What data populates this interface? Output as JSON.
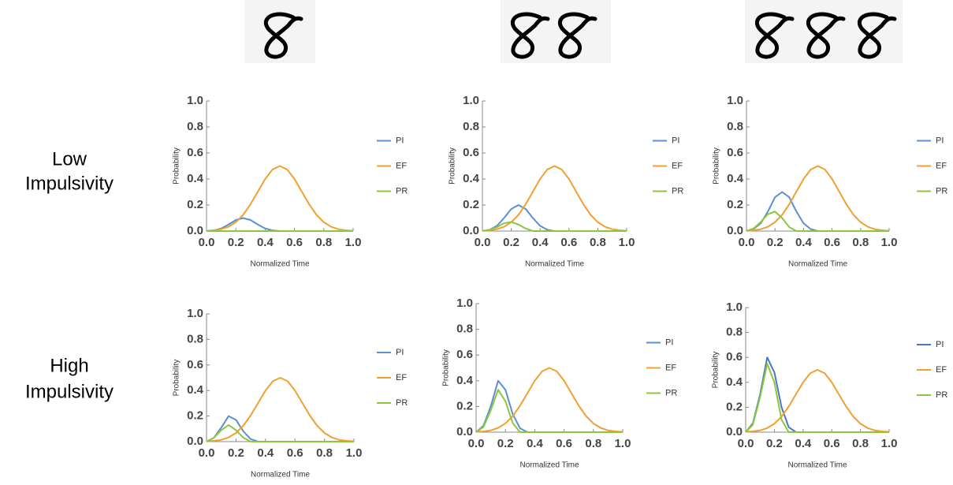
{
  "row_labels": [
    [
      "Low",
      "Impulsivity"
    ],
    [
      "High",
      "Impulsivity"
    ]
  ],
  "chart_data": [
    {
      "type": "line",
      "xlabel": "Normalized Time",
      "ylabel": "Probability",
      "xlim": [
        0,
        1
      ],
      "ylim": [
        0,
        1
      ],
      "xticks": [
        {
          "value": 0,
          "label": "0.0"
        },
        0.2,
        0.4,
        0.6,
        0.8,
        {
          "value": 1,
          "label": "1.0"
        }
      ],
      "yticks": [
        {
          "value": 0,
          "label": "0.0"
        },
        0.2,
        0.4,
        0.6,
        0.8,
        {
          "value": 1,
          "label": "1.0"
        }
      ],
      "x": [
        0,
        0.05,
        0.1,
        0.15,
        0.2,
        0.25,
        0.3,
        0.35,
        0.4,
        0.45,
        0.5,
        0.55,
        0.6,
        0.65,
        0.7,
        0.75,
        0.8,
        0.85,
        0.9,
        0.95,
        1
      ],
      "series": [
        {
          "name": "PI",
          "color": "#5b8fd1",
          "values": [
            0,
            0.005,
            0.02,
            0.05,
            0.085,
            0.1,
            0.085,
            0.05,
            0.02,
            0.005,
            0,
            0,
            0,
            0,
            0,
            0,
            0,
            0,
            0,
            0,
            0
          ]
        },
        {
          "name": "EF",
          "color": "#f0a030",
          "values": [
            0.002,
            0.006,
            0.014,
            0.033,
            0.068,
            0.125,
            0.206,
            0.303,
            0.4,
            0.473,
            0.5,
            0.473,
            0.4,
            0.303,
            0.206,
            0.125,
            0.068,
            0.033,
            0.014,
            0.006,
            0.002
          ]
        },
        {
          "name": "PR",
          "color": "#8cc63f",
          "values": [
            0,
            0,
            0,
            0,
            0,
            0,
            0,
            0,
            0,
            0,
            0,
            0,
            0,
            0,
            0,
            0,
            0,
            0,
            0,
            0,
            0
          ]
        }
      ]
    },
    {
      "type": "line",
      "xlabel": "Normalized Time",
      "ylabel": "Probability",
      "xlim": [
        0,
        1
      ],
      "ylim": [
        0,
        1
      ],
      "xticks": [
        {
          "value": 0,
          "label": "0.0"
        },
        0.2,
        0.4,
        0.6,
        0.8,
        {
          "value": 1,
          "label": "1.0"
        }
      ],
      "yticks": [
        {
          "value": 0,
          "label": "0.0"
        },
        0.2,
        0.4,
        0.6,
        0.8,
        {
          "value": 1,
          "label": "1.0"
        }
      ],
      "x": [
        0,
        0.05,
        0.1,
        0.15,
        0.2,
        0.25,
        0.3,
        0.35,
        0.4,
        0.45,
        0.5,
        0.55,
        0.6,
        0.65,
        0.7,
        0.75,
        0.8,
        0.85,
        0.9,
        0.95,
        1
      ],
      "series": [
        {
          "name": "PI",
          "color": "#5b8fd1",
          "values": [
            0,
            0.01,
            0.04,
            0.1,
            0.17,
            0.2,
            0.17,
            0.1,
            0.04,
            0.01,
            0,
            0,
            0,
            0,
            0,
            0,
            0,
            0,
            0,
            0,
            0
          ]
        },
        {
          "name": "EF",
          "color": "#f0a030",
          "values": [
            0.002,
            0.006,
            0.014,
            0.033,
            0.068,
            0.125,
            0.206,
            0.303,
            0.4,
            0.473,
            0.5,
            0.473,
            0.4,
            0.303,
            0.206,
            0.125,
            0.068,
            0.033,
            0.014,
            0.006,
            0.002
          ]
        },
        {
          "name": "PR",
          "color": "#8cc63f",
          "values": [
            0,
            0.01,
            0.03,
            0.06,
            0.07,
            0.05,
            0.02,
            0,
            0,
            0,
            0,
            0,
            0,
            0,
            0,
            0,
            0,
            0,
            0,
            0,
            0
          ]
        }
      ]
    },
    {
      "type": "line",
      "xlabel": "Normalized Time",
      "ylabel": "Probability",
      "xlim": [
        0,
        1
      ],
      "ylim": [
        0,
        1
      ],
      "xticks": [
        {
          "value": 0,
          "label": "0.0"
        },
        0.2,
        0.4,
        0.6,
        0.8,
        {
          "value": 1,
          "label": "1.0"
        }
      ],
      "yticks": [
        {
          "value": 0,
          "label": "0.0"
        },
        0.2,
        0.4,
        0.6,
        0.8,
        {
          "value": 1,
          "label": "1.0"
        }
      ],
      "x": [
        0,
        0.05,
        0.1,
        0.15,
        0.2,
        0.25,
        0.3,
        0.35,
        0.4,
        0.45,
        0.5,
        0.55,
        0.6,
        0.65,
        0.7,
        0.75,
        0.8,
        0.85,
        0.9,
        0.95,
        1
      ],
      "series": [
        {
          "name": "PI",
          "color": "#5b8fd1",
          "values": [
            0,
            0.015,
            0.06,
            0.15,
            0.26,
            0.3,
            0.26,
            0.15,
            0.06,
            0.015,
            0,
            0,
            0,
            0,
            0,
            0,
            0,
            0,
            0,
            0,
            0
          ]
        },
        {
          "name": "EF",
          "color": "#f0a030",
          "values": [
            0.002,
            0.006,
            0.014,
            0.033,
            0.068,
            0.125,
            0.206,
            0.303,
            0.4,
            0.473,
            0.5,
            0.473,
            0.4,
            0.303,
            0.206,
            0.125,
            0.068,
            0.033,
            0.014,
            0.006,
            0.002
          ]
        },
        {
          "name": "PR",
          "color": "#8cc63f",
          "values": [
            0,
            0.02,
            0.07,
            0.13,
            0.15,
            0.1,
            0.03,
            0,
            0,
            0,
            0,
            0,
            0,
            0,
            0,
            0,
            0,
            0,
            0,
            0,
            0
          ]
        }
      ]
    },
    {
      "type": "line",
      "xlabel": "Normalized Time",
      "ylabel": "Probability",
      "xlim": [
        0,
        1
      ],
      "ylim": [
        0,
        1
      ],
      "xticks": [
        {
          "value": 0,
          "label": "0.0"
        },
        0.2,
        0.4,
        0.6,
        0.8,
        {
          "value": 1,
          "label": "1.0"
        }
      ],
      "yticks": [
        {
          "value": 0,
          "label": "0.0"
        },
        0.2,
        0.4,
        0.6,
        0.8,
        {
          "value": 1,
          "label": "1.0"
        }
      ],
      "x": [
        0,
        0.05,
        0.1,
        0.15,
        0.2,
        0.25,
        0.3,
        0.35,
        0.4,
        0.45,
        0.5,
        0.55,
        0.6,
        0.65,
        0.7,
        0.75,
        0.8,
        0.85,
        0.9,
        0.95,
        1
      ],
      "series": [
        {
          "name": "PI",
          "color": "#5b8fd1",
          "values": [
            0,
            0.03,
            0.11,
            0.2,
            0.17,
            0.08,
            0.02,
            0,
            0,
            0,
            0,
            0,
            0,
            0,
            0,
            0,
            0,
            0,
            0,
            0,
            0
          ]
        },
        {
          "name": "EF",
          "color": "#f0a030",
          "values": [
            0.002,
            0.006,
            0.014,
            0.033,
            0.068,
            0.125,
            0.206,
            0.303,
            0.4,
            0.473,
            0.5,
            0.473,
            0.4,
            0.303,
            0.206,
            0.125,
            0.068,
            0.033,
            0.014,
            0.006,
            0.002
          ]
        },
        {
          "name": "PR",
          "color": "#8cc63f",
          "values": [
            0,
            0.03,
            0.09,
            0.13,
            0.09,
            0.03,
            0,
            0,
            0,
            0,
            0,
            0,
            0,
            0,
            0,
            0,
            0,
            0,
            0,
            0,
            0
          ]
        }
      ]
    },
    {
      "type": "line",
      "xlabel": "Normalized Time",
      "ylabel": "Probability",
      "xlim": [
        0,
        1
      ],
      "ylim": [
        0,
        1
      ],
      "xticks": [
        {
          "value": 0,
          "label": "0.0"
        },
        0.2,
        0.4,
        0.6,
        0.8,
        {
          "value": 1,
          "label": "1.0"
        }
      ],
      "yticks": [
        {
          "value": 0,
          "label": "0.0"
        },
        0.2,
        0.4,
        0.6,
        0.8,
        {
          "value": 1,
          "label": "1.0"
        }
      ],
      "x": [
        0,
        0.05,
        0.1,
        0.15,
        0.2,
        0.25,
        0.3,
        0.35,
        0.4,
        0.45,
        0.5,
        0.55,
        0.6,
        0.65,
        0.7,
        0.75,
        0.8,
        0.85,
        0.9,
        0.95,
        1
      ],
      "series": [
        {
          "name": "PI",
          "color": "#5b8fd1",
          "values": [
            0,
            0.05,
            0.2,
            0.4,
            0.33,
            0.14,
            0.03,
            0,
            0,
            0,
            0,
            0,
            0,
            0,
            0,
            0,
            0,
            0,
            0,
            0,
            0
          ]
        },
        {
          "name": "EF",
          "color": "#f0a030",
          "values": [
            0.002,
            0.006,
            0.014,
            0.033,
            0.068,
            0.125,
            0.206,
            0.303,
            0.4,
            0.473,
            0.5,
            0.473,
            0.4,
            0.303,
            0.206,
            0.125,
            0.068,
            0.033,
            0.014,
            0.006,
            0.002
          ]
        },
        {
          "name": "PR",
          "color": "#8cc63f",
          "values": [
            0,
            0.04,
            0.17,
            0.33,
            0.24,
            0.07,
            0,
            0,
            0,
            0,
            0,
            0,
            0,
            0,
            0,
            0,
            0,
            0,
            0,
            0,
            0
          ]
        }
      ]
    },
    {
      "type": "line",
      "xlabel": "Normalized Time",
      "ylabel": "Probability",
      "xlim": [
        0,
        1
      ],
      "ylim": [
        0,
        1
      ],
      "xticks": [
        {
          "value": 0,
          "label": "0.0"
        },
        0.2,
        0.4,
        0.6,
        0.8,
        {
          "value": 1,
          "label": "1.0"
        }
      ],
      "yticks": [
        {
          "value": 0,
          "label": "0.0"
        },
        0.2,
        0.4,
        0.6,
        0.8,
        {
          "value": 1,
          "label": "1.0"
        }
      ],
      "x": [
        0,
        0.05,
        0.1,
        0.15,
        0.2,
        0.25,
        0.3,
        0.35,
        0.4,
        0.45,
        0.5,
        0.55,
        0.6,
        0.65,
        0.7,
        0.75,
        0.8,
        0.85,
        0.9,
        0.95,
        1
      ],
      "series": [
        {
          "name": "PI",
          "color": "#4a78c0",
          "values": [
            0,
            0.07,
            0.3,
            0.6,
            0.48,
            0.2,
            0.04,
            0,
            0,
            0,
            0,
            0,
            0,
            0,
            0,
            0,
            0,
            0,
            0,
            0,
            0
          ]
        },
        {
          "name": "EF",
          "color": "#f0a030",
          "values": [
            0.002,
            0.006,
            0.014,
            0.033,
            0.068,
            0.125,
            0.206,
            0.303,
            0.4,
            0.473,
            0.5,
            0.473,
            0.4,
            0.303,
            0.206,
            0.125,
            0.068,
            0.033,
            0.014,
            0.006,
            0.002
          ]
        },
        {
          "name": "PR",
          "color": "#8cc63f",
          "values": [
            0,
            0.06,
            0.28,
            0.55,
            0.4,
            0.1,
            0,
            0,
            0,
            0,
            0,
            0,
            0,
            0,
            0,
            0,
            0,
            0,
            0,
            0,
            0
          ]
        }
      ]
    }
  ]
}
